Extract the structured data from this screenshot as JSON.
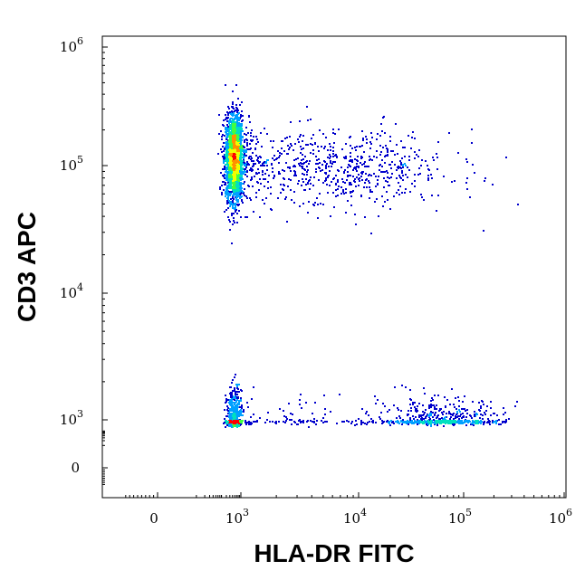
{
  "chart_data": {
    "type": "scatter",
    "subtype": "flow-cytometry density dot plot",
    "xlabel": "HLA-DR FITC",
    "ylabel": "CD3 APC",
    "x_scale": "biexponential",
    "y_scale": "biexponential",
    "xlim": [
      -200,
      1200000
    ],
    "ylim": [
      -200,
      1200000
    ],
    "x_ticks": [
      {
        "value": 0,
        "base": "0",
        "exp": ""
      },
      {
        "value": 1000,
        "base": "10",
        "exp": "3"
      },
      {
        "value": 10000,
        "base": "10",
        "exp": "4"
      },
      {
        "value": 100000,
        "base": "10",
        "exp": "5"
      },
      {
        "value": 1000000,
        "base": "10",
        "exp": "6"
      }
    ],
    "y_ticks": [
      {
        "value": 0,
        "base": "0",
        "exp": ""
      },
      {
        "value": 1000,
        "base": "10",
        "exp": "3"
      },
      {
        "value": 10000,
        "base": "10",
        "exp": "4"
      },
      {
        "value": 100000,
        "base": "10",
        "exp": "5"
      },
      {
        "value": 1000000,
        "base": "10",
        "exp": "6"
      }
    ],
    "color_scale": [
      "#0000cc",
      "#00a0ff",
      "#00e0c0",
      "#40ff40",
      "#f0ff00",
      "#ff9000",
      "#ff0000"
    ],
    "populations": [
      {
        "x_center": 550,
        "y_center": 120000,
        "events": 2600,
        "x_spread_decades": 0.16,
        "y_spread_decades": 0.17,
        "peak_density": "red"
      },
      {
        "x_center": 6000,
        "y_center": 95000,
        "events": 700,
        "x_spread_decades": 0.55,
        "y_spread_decades": 0.16,
        "peak_density": "blue"
      },
      {
        "x_center": 550,
        "y_center": 950,
        "events": 520,
        "x_spread_decades": 0.14,
        "y_spread_decades": 0.14,
        "peak_density": "green"
      },
      {
        "x_center": 3000,
        "y_center": 950,
        "events": 130,
        "x_spread_decades": 0.45,
        "y_spread_decades": 0.12,
        "peak_density": "blue"
      },
      {
        "x_center": 60000,
        "y_center": 950,
        "events": 560,
        "x_spread_decades": 0.3,
        "y_spread_decades": 0.1,
        "peak_density": "cyan"
      }
    ]
  }
}
